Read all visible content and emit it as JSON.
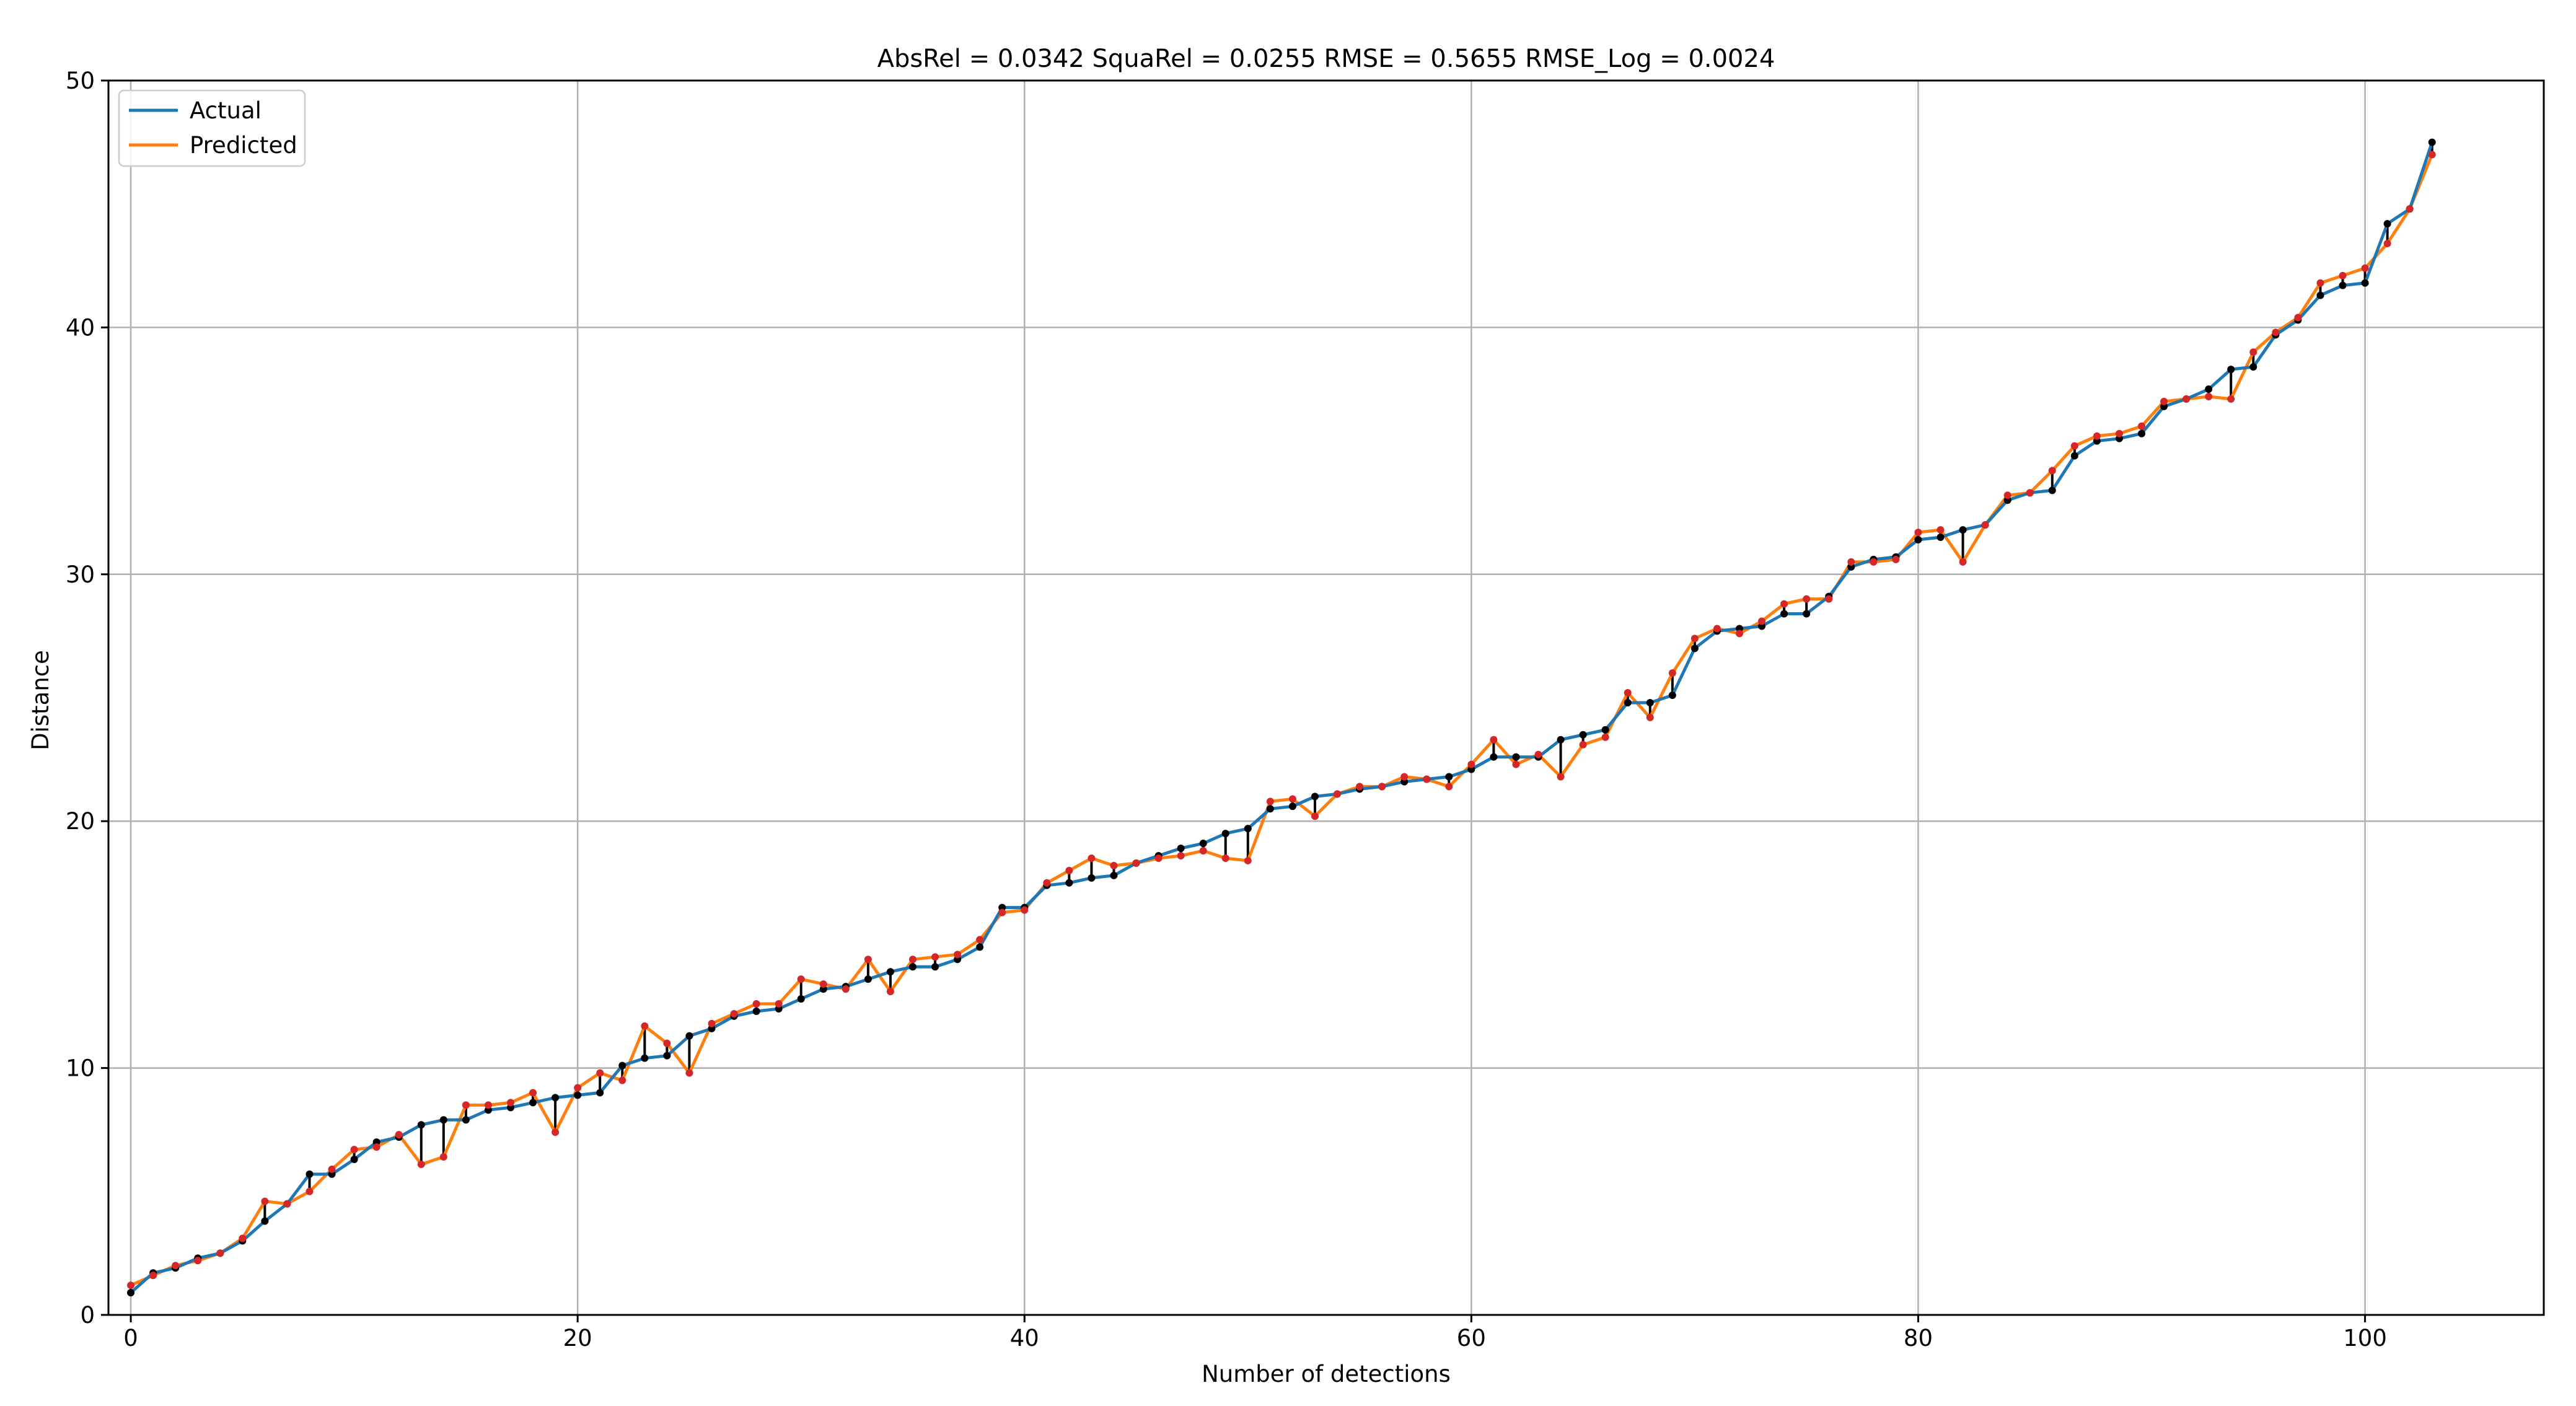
{
  "chart_data": {
    "type": "line",
    "title": "AbsRel = 0.0342  SquaRel = 0.0255   RMSE = 0.5655    RMSE_Log = 0.0024",
    "xlabel": "Number of detections",
    "ylabel": "Distance",
    "xlim": [
      -1,
      108
    ],
    "ylim": [
      0,
      50
    ],
    "x_ticks": [
      0,
      20,
      40,
      60,
      80,
      100
    ],
    "y_ticks": [
      0,
      10,
      20,
      30,
      40,
      50
    ],
    "grid": true,
    "legend_position": "top-left",
    "colors": {
      "actual": "#1f77b4",
      "predicted": "#ff7f0e",
      "actual_marker": "#000000",
      "predicted_marker": "#d62728",
      "error_segment": "#000000",
      "grid": "#b0b0b0"
    },
    "x": [
      0,
      1,
      2,
      3,
      4,
      5,
      6,
      7,
      8,
      9,
      10,
      11,
      12,
      13,
      14,
      15,
      16,
      17,
      18,
      19,
      20,
      21,
      22,
      23,
      24,
      25,
      26,
      27,
      28,
      29,
      30,
      31,
      32,
      33,
      34,
      35,
      36,
      37,
      38,
      39,
      40,
      41,
      42,
      43,
      44,
      45,
      46,
      47,
      48,
      49,
      50,
      51,
      52,
      53,
      54,
      55,
      56,
      57,
      58,
      59,
      60,
      61,
      62,
      63,
      64,
      65,
      66,
      67,
      68,
      69,
      70,
      71,
      72,
      73,
      74,
      75,
      76,
      77,
      78,
      79,
      80,
      81,
      82,
      83,
      84,
      85,
      86,
      87,
      88,
      89,
      90,
      91,
      92,
      93,
      94,
      95,
      96,
      97,
      98,
      99,
      100,
      101,
      102,
      103
    ],
    "series": [
      {
        "name": "Actual",
        "values": [
          0.9,
          1.7,
          1.9,
          2.3,
          2.5,
          3.0,
          3.8,
          4.5,
          5.7,
          5.7,
          6.3,
          7.0,
          7.2,
          7.7,
          7.9,
          7.9,
          8.3,
          8.4,
          8.6,
          8.8,
          8.9,
          9.0,
          10.1,
          10.4,
          10.5,
          11.3,
          11.6,
          12.1,
          12.3,
          12.4,
          12.8,
          13.2,
          13.3,
          13.6,
          13.9,
          14.1,
          14.1,
          14.4,
          14.9,
          16.5,
          16.5,
          17.4,
          17.5,
          17.7,
          17.8,
          18.3,
          18.6,
          18.9,
          19.1,
          19.5,
          19.7,
          20.5,
          20.6,
          21.0,
          21.1,
          21.3,
          21.4,
          21.6,
          21.7,
          21.8,
          22.1,
          22.6,
          22.6,
          22.6,
          23.3,
          23.5,
          23.7,
          24.8,
          24.8,
          25.1,
          27.0,
          27.7,
          27.8,
          27.9,
          28.4,
          28.4,
          29.1,
          30.3,
          30.6,
          30.7,
          31.4,
          31.5,
          31.8,
          32.0,
          33.0,
          33.3,
          33.4,
          34.8,
          35.4,
          35.5,
          35.7,
          36.8,
          37.1,
          37.5,
          38.3,
          38.4,
          39.7,
          40.3,
          41.3,
          41.7,
          41.8,
          44.2,
          44.8,
          47.5
        ]
      },
      {
        "name": "Predicted",
        "values": [
          1.2,
          1.6,
          2.0,
          2.2,
          2.5,
          3.1,
          4.6,
          4.5,
          5.0,
          5.9,
          6.7,
          6.8,
          7.3,
          6.1,
          6.4,
          8.5,
          8.5,
          8.6,
          9.0,
          7.4,
          9.2,
          9.8,
          9.5,
          11.7,
          11.0,
          9.8,
          11.8,
          12.2,
          12.6,
          12.6,
          13.6,
          13.4,
          13.2,
          14.4,
          13.1,
          14.4,
          14.5,
          14.6,
          15.2,
          16.3,
          16.4,
          17.5,
          18.0,
          18.5,
          18.2,
          18.3,
          18.5,
          18.6,
          18.8,
          18.5,
          18.4,
          20.8,
          20.9,
          20.2,
          21.1,
          21.4,
          21.4,
          21.8,
          21.7,
          21.4,
          22.3,
          23.3,
          22.3,
          22.7,
          21.8,
          23.1,
          23.4,
          25.2,
          24.2,
          26.0,
          27.4,
          27.8,
          27.6,
          28.1,
          28.8,
          29.0,
          29.0,
          30.5,
          30.5,
          30.6,
          31.7,
          31.8,
          30.5,
          32.0,
          33.2,
          33.3,
          34.2,
          35.2,
          35.6,
          35.7,
          36.0,
          37.0,
          37.1,
          37.2,
          37.1,
          39.0,
          39.8,
          40.4,
          41.8,
          42.1,
          42.4,
          43.4,
          44.8,
          47.0
        ]
      }
    ]
  }
}
